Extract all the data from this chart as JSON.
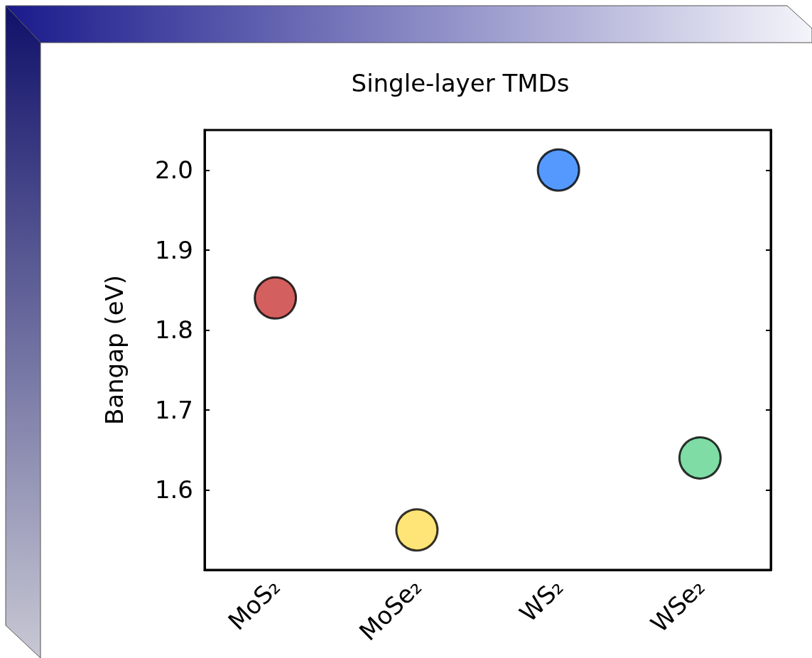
{
  "chart_data": {
    "type": "scatter",
    "title": "Single-layer TMDs",
    "ylabel": "Bangap (eV)",
    "categories": [
      "MoS₂",
      "MoSe₂",
      "WS₂",
      "WSe₂"
    ],
    "values": [
      1.84,
      1.55,
      2.0,
      1.64
    ],
    "colors": [
      "#c83737",
      "#ffdd55",
      "#2a7fff",
      "#5fd38d"
    ],
    "ylim": [
      1.5,
      2.05
    ],
    "yticks": [
      {
        "value": 1.6,
        "label": "1.6"
      },
      {
        "value": 1.7,
        "label": "1.7"
      },
      {
        "value": 1.8,
        "label": "1.8"
      },
      {
        "value": 1.9,
        "label": "1.9"
      },
      {
        "value": 2.0,
        "label": "2.0"
      }
    ],
    "marker": "circle"
  }
}
